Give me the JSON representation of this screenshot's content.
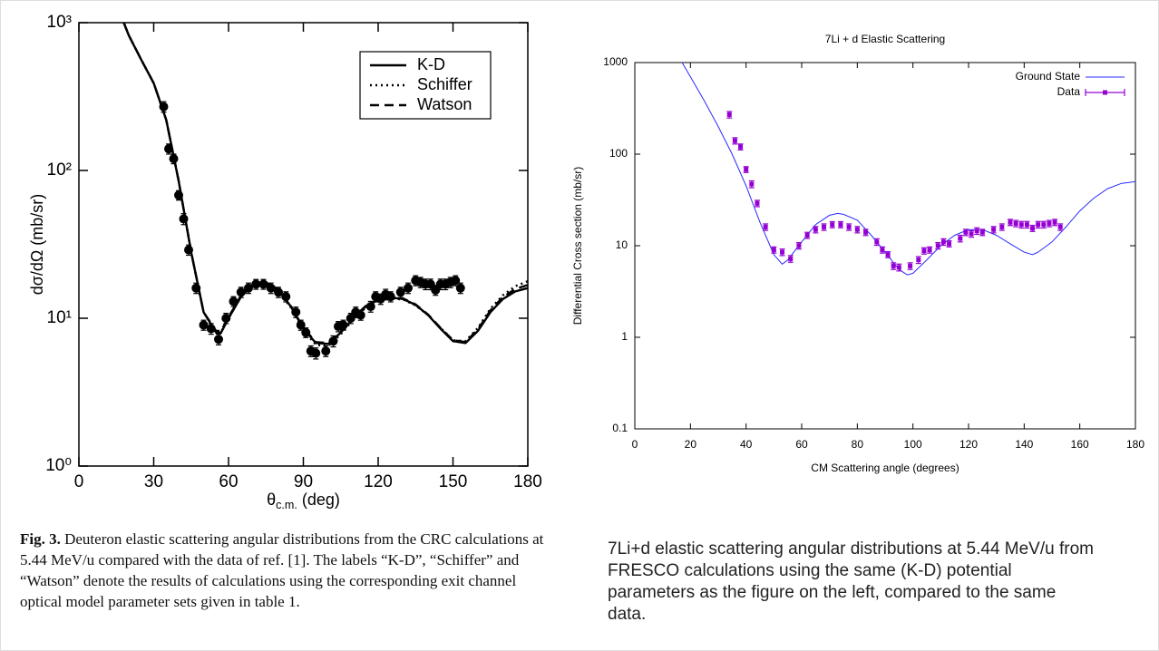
{
  "chart_data": [
    {
      "type": "line",
      "y_label": "dσ/dΩ (mb/sr)",
      "x_label": {
        "symbol": "θ",
        "subscript": "c.m.",
        "unit": "(deg)"
      },
      "xlim": [
        0,
        180
      ],
      "xticks": [
        0,
        30,
        60,
        90,
        120,
        150,
        180
      ],
      "ylim": [
        1,
        1000
      ],
      "log_y": true,
      "yticks": [
        {
          "value": 1,
          "label": "10⁰"
        },
        {
          "value": 10,
          "label": "10¹"
        },
        {
          "value": 100,
          "label": "10²"
        },
        {
          "value": 1000,
          "label": "10³"
        }
      ],
      "legend": "top-right",
      "x": [
        18,
        20,
        25,
        30,
        35,
        40,
        45,
        50,
        55,
        57,
        60,
        65,
        70,
        75,
        80,
        85,
        90,
        95,
        100,
        105,
        110,
        115,
        120,
        125,
        130,
        135,
        140,
        145,
        150,
        155,
        160,
        165,
        170,
        175,
        180
      ],
      "series": [
        {
          "name": "K-D",
          "color": "#000000",
          "style": "solid",
          "values": [
            1000,
            820,
            560,
            390,
            220,
            85,
            28,
            11,
            8,
            8,
            10,
            14,
            17,
            17.5,
            15.5,
            12,
            8.5,
            6.8,
            6.7,
            8,
            10,
            12,
            13.3,
            13.8,
            13.5,
            12.3,
            10.5,
            8.5,
            7,
            6.8,
            8.2,
            11,
            13.5,
            15.2,
            16
          ]
        },
        {
          "name": "Schiffer",
          "color": "#000000",
          "style": "dotted",
          "values": [
            1000,
            820,
            560,
            390,
            220,
            85,
            28,
            11,
            8.1,
            8.1,
            10,
            14,
            17,
            17.3,
            15.3,
            11.8,
            8.3,
            6.6,
            6.5,
            7.8,
            9.8,
            11.8,
            13.1,
            13.6,
            13.4,
            12.2,
            10.5,
            8.6,
            7.1,
            7,
            8.6,
            11.6,
            14.3,
            16.5,
            17.8
          ]
        },
        {
          "name": "Watson",
          "color": "#000000",
          "style": "dashed",
          "values": [
            1000,
            820,
            560,
            390,
            220,
            85,
            28,
            11,
            8.2,
            8.2,
            10.2,
            14.2,
            17.2,
            17.6,
            15.6,
            12.1,
            8.6,
            6.9,
            6.8,
            8.1,
            10.1,
            12.1,
            13.4,
            13.9,
            13.6,
            12.4,
            10.6,
            8.6,
            7.1,
            6.9,
            8.4,
            11.3,
            13.9,
            15.8,
            16.8
          ]
        }
      ],
      "points": {
        "color": "#000000",
        "x": [
          34,
          36,
          38,
          40,
          42,
          44,
          47,
          50,
          53,
          56,
          59,
          62,
          65,
          68,
          71,
          74,
          77,
          80,
          83,
          87,
          89,
          91,
          93,
          95,
          99,
          102,
          104,
          106,
          109,
          111,
          113,
          117,
          119,
          121,
          123,
          125,
          129,
          132,
          135,
          137,
          139,
          141,
          143,
          145,
          147,
          149,
          151,
          153
        ],
        "values": [
          270,
          140,
          120,
          68,
          47,
          29,
          16,
          9,
          8.5,
          7.2,
          10,
          13,
          15,
          16,
          17,
          17,
          16,
          15,
          14,
          11,
          9,
          8,
          6,
          5.8,
          6,
          7,
          8.8,
          9,
          10,
          11,
          10.5,
          12,
          14,
          13.5,
          14.5,
          14,
          15,
          16,
          18,
          17.5,
          17,
          17,
          15.5,
          17,
          17,
          17.5,
          18,
          16
        ],
        "errors": [
          22,
          11,
          9,
          5,
          4,
          2.3,
          1.3,
          0.7,
          0.7,
          0.6,
          0.8,
          1,
          1.2,
          1.3,
          1.3,
          1.3,
          1.3,
          1.2,
          1.1,
          0.9,
          0.7,
          0.6,
          0.5,
          0.5,
          0.5,
          0.6,
          0.7,
          0.7,
          0.8,
          0.9,
          0.8,
          1,
          1.1,
          1.1,
          1.2,
          1.1,
          1.2,
          1.3,
          1.4,
          1.4,
          1.4,
          1.4,
          1.2,
          1.4,
          1.4,
          1.4,
          1.4,
          1.3
        ]
      }
    },
    {
      "type": "line",
      "title": "7Li + d Elastic Scattering",
      "x_label": "CM Scattering angle (degrees)",
      "y_label": "Differential Cross section (mb/sr)",
      "xlim": [
        0,
        180
      ],
      "xticks": [
        0,
        20,
        40,
        60,
        80,
        100,
        120,
        140,
        160,
        180
      ],
      "ylim": [
        0.1,
        1000
      ],
      "log_y": true,
      "yticks": [
        0.1,
        1,
        10,
        100,
        1000
      ],
      "legend": "top-right",
      "x": [
        17,
        20,
        25,
        30,
        35,
        40,
        45,
        50,
        53,
        55,
        60,
        65,
        70,
        73,
        75,
        80,
        85,
        90,
        95,
        98,
        100,
        105,
        110,
        115,
        120,
        125,
        130,
        135,
        140,
        143,
        145,
        150,
        155,
        160,
        165,
        170,
        175,
        180
      ],
      "series": [
        {
          "name": "Ground State",
          "color": "#2b2bff",
          "style": "solid",
          "values": [
            1000,
            700,
            380,
            200,
            100,
            45,
            18,
            8,
            6.3,
            7,
            11,
            17,
            21.5,
            22.5,
            22,
            19,
            13,
            8.5,
            5.5,
            4.8,
            5,
            7,
            10,
            13,
            15,
            15,
            13,
            10.5,
            8.5,
            8,
            8.5,
            11,
            16,
            24,
            33,
            42,
            48,
            50
          ]
        }
      ],
      "points": {
        "name": "Data",
        "color": "#9400d3",
        "x": [
          34,
          36,
          38,
          40,
          42,
          44,
          47,
          50,
          53,
          56,
          59,
          62,
          65,
          68,
          71,
          74,
          77,
          80,
          83,
          87,
          89,
          91,
          93,
          95,
          99,
          102,
          104,
          106,
          109,
          111,
          113,
          117,
          119,
          121,
          123,
          125,
          129,
          132,
          135,
          137,
          139,
          141,
          143,
          145,
          147,
          149,
          151,
          153
        ],
        "values": [
          270,
          140,
          120,
          68,
          47,
          29,
          16,
          9,
          8.5,
          7.2,
          10,
          13,
          15,
          16,
          17,
          17,
          16,
          15,
          14,
          11,
          9,
          8,
          6,
          5.8,
          6,
          7,
          8.8,
          9,
          10,
          11,
          10.5,
          12,
          14,
          13.5,
          14.5,
          14,
          15,
          16,
          18,
          17.5,
          17,
          17,
          15.5,
          17,
          17,
          17.5,
          18,
          16
        ],
        "errors": [
          22,
          11,
          9,
          5,
          4,
          2.3,
          1.3,
          0.7,
          0.7,
          0.6,
          0.8,
          1,
          1.2,
          1.3,
          1.3,
          1.3,
          1.3,
          1.2,
          1.1,
          0.9,
          0.7,
          0.6,
          0.5,
          0.5,
          0.5,
          0.6,
          0.7,
          0.7,
          0.8,
          0.9,
          0.8,
          1,
          1.1,
          1.1,
          1.2,
          1.1,
          1.2,
          1.3,
          1.4,
          1.4,
          1.4,
          1.4,
          1.2,
          1.4,
          1.4,
          1.4,
          1.4,
          1.3
        ]
      }
    }
  ],
  "captions": [
    {
      "label": "Fig. 3.",
      "text": "Deuteron elastic scattering angular distributions from the CRC calculations at 5.44 MeV/u compared with the data of ref. [1]. The labels “K-D”, “Schiffer” and “Watson” denote the results of calculations using the corresponding exit channel optical model parameter sets given in table 1."
    },
    {
      "text": "7Li+d elastic scattering angular distributions at 5.44 MeV/u from FRESCO calculations using the same (K-D) potential parameters as the figure on the left, compared to the same data."
    }
  ]
}
